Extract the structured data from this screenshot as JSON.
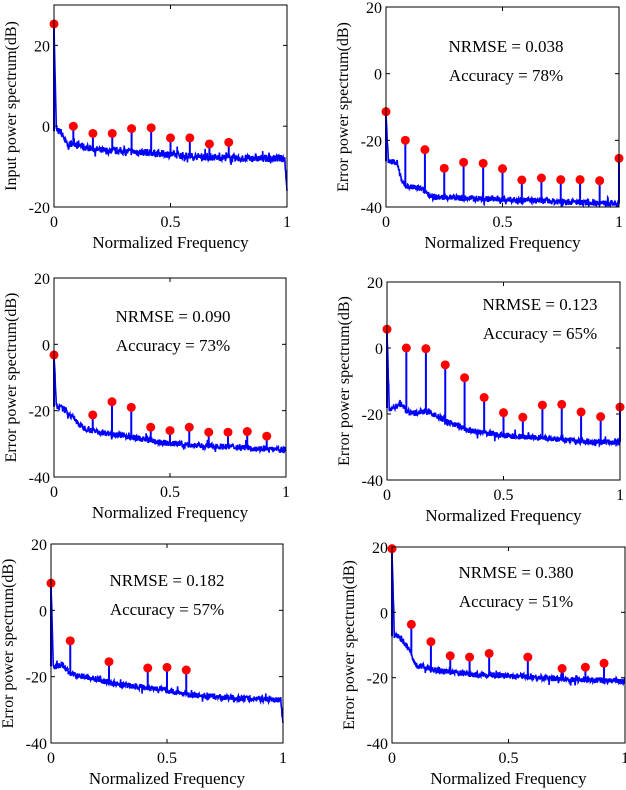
{
  "chart_data": [
    {
      "type": "stem+line",
      "xlabel": "Normalized Frequency",
      "ylabel": "Input power spectrum(dB)",
      "xlim": [
        0,
        1
      ],
      "ylim": [
        -20,
        30
      ],
      "xticks": [
        "0",
        "0.5",
        "1"
      ],
      "xtick_values": [
        0,
        0.5,
        1
      ],
      "yticks": [
        "-20",
        "0",
        "20"
      ],
      "ytick_values": [
        -20,
        0,
        20
      ],
      "annotations": [],
      "stems": {
        "x": [
          0,
          0.083,
          0.167,
          0.25,
          0.333,
          0.417,
          0.5,
          0.583,
          0.667,
          0.75
        ],
        "y": [
          25.3,
          0,
          -1.8,
          -1.8,
          -0.6,
          -0.4,
          -2.9,
          -2.9,
          -4.4,
          -4.0
        ]
      },
      "noise_floor": {
        "x": [
          0,
          0.01,
          0.03,
          0.06,
          0.08,
          0.12,
          0.2,
          0.4,
          0.6,
          0.8,
          0.99,
          1.0
        ],
        "y": [
          25,
          -1,
          -1.5,
          -5,
          -4,
          -5,
          -6,
          -6.5,
          -7.5,
          -8,
          -8,
          -16
        ]
      }
    },
    {
      "type": "stem+line",
      "xlabel": "Normalized Frequency",
      "ylabel": "Error power spectrum(dB)",
      "xlim": [
        0,
        1
      ],
      "ylim": [
        -40,
        20
      ],
      "xticks": [
        "0",
        "0.5",
        "1"
      ],
      "xtick_values": [
        0,
        0.5,
        1
      ],
      "yticks": [
        "-40",
        "-20",
        "0",
        "20"
      ],
      "ytick_values": [
        -40,
        -20,
        0,
        20
      ],
      "annotations": [
        "NRMSE = 0.038",
        "Accuracy = 78%"
      ],
      "stems": {
        "x": [
          0,
          0.083,
          0.167,
          0.25,
          0.333,
          0.417,
          0.5,
          0.583,
          0.667,
          0.75,
          0.833,
          0.917,
          1.0
        ],
        "y": [
          -11.4,
          -20,
          -22.8,
          -28.4,
          -26.6,
          -26.9,
          -28.5,
          -31.9,
          -31.3,
          -31.8,
          -31.8,
          -32.1,
          -25.4
        ]
      },
      "noise_floor": {
        "x": [
          0,
          0.01,
          0.05,
          0.07,
          0.1,
          0.15,
          0.2,
          0.4,
          0.6,
          0.8,
          1.0
        ],
        "y": [
          -12,
          -26,
          -27,
          -33,
          -34,
          -34.5,
          -37,
          -37.5,
          -38,
          -38.5,
          -39
        ]
      }
    },
    {
      "type": "stem+line",
      "xlabel": "Normalized Frequency",
      "ylabel": "Error power spectrum(dB)",
      "xlim": [
        0,
        1
      ],
      "ylim": [
        -40,
        20
      ],
      "xticks": [
        "0",
        "0.5",
        "1"
      ],
      "xtick_values": [
        0,
        0.5,
        1
      ],
      "yticks": [
        "-40",
        "-20",
        "0",
        "20"
      ],
      "ytick_values": [
        -40,
        -20,
        0,
        20
      ],
      "annotations": [
        "NRMSE = 0.090",
        "Accuracy = 73%"
      ],
      "stems": {
        "x": [
          0,
          0.167,
          0.25,
          0.333,
          0.417,
          0.5,
          0.583,
          0.667,
          0.75,
          0.833,
          0.917
        ],
        "y": [
          -3.2,
          -21.3,
          -17.3,
          -19,
          -25,
          -26,
          -25,
          -26.5,
          -26.5,
          -26.3,
          -27.7
        ]
      },
      "noise_floor": {
        "x": [
          0,
          0.01,
          0.04,
          0.08,
          0.12,
          0.2,
          0.3,
          0.45,
          0.6,
          0.8,
          1.0
        ],
        "y": [
          -3,
          -18.5,
          -19.5,
          -22,
          -25,
          -26.5,
          -27.5,
          -29.5,
          -30.5,
          -31,
          -32
        ]
      }
    },
    {
      "type": "stem+line",
      "xlabel": "Normalized Frequency",
      "ylabel": "Error power spectrum(dB)",
      "xlim": [
        0,
        1
      ],
      "ylim": [
        -40,
        20
      ],
      "xticks": [
        "0",
        "0.5",
        "1"
      ],
      "xtick_values": [
        0,
        0.5,
        1
      ],
      "yticks": [
        "-40",
        "-20",
        "0",
        "20"
      ],
      "ytick_values": [
        -40,
        -20,
        0,
        20
      ],
      "annotations": [
        "NRMSE = 0.123",
        "Accuracy = 65%"
      ],
      "stems": {
        "x": [
          0,
          0.083,
          0.167,
          0.25,
          0.333,
          0.417,
          0.5,
          0.583,
          0.667,
          0.75,
          0.833,
          0.917,
          1.0
        ],
        "y": [
          5.7,
          0,
          -0.2,
          -5.1,
          -9,
          -15,
          -19.6,
          -21,
          -17.3,
          -17.1,
          -19.4,
          -20.8,
          -17.9
        ]
      },
      "noise_floor": {
        "x": [
          0,
          0.01,
          0.06,
          0.1,
          0.17,
          0.25,
          0.35,
          0.5,
          0.7,
          0.9,
          1.0
        ],
        "y": [
          5,
          -18.5,
          -17,
          -20,
          -19,
          -22,
          -25,
          -26.5,
          -27.5,
          -28.5,
          -28.5
        ]
      }
    },
    {
      "type": "stem+line",
      "xlabel": "Normalized Frequency",
      "ylabel": "Error power spectrum(dB)",
      "xlim": [
        0,
        1
      ],
      "ylim": [
        -40,
        20
      ],
      "xticks": [
        "0",
        "0.5",
        "1"
      ],
      "xtick_values": [
        0,
        0.5,
        1
      ],
      "yticks": [
        "-40",
        "-20",
        "0",
        "20"
      ],
      "ytick_values": [
        -40,
        -20,
        0,
        20
      ],
      "annotations": [
        "NRMSE = 0.182",
        "Accuracy = 57%"
      ],
      "stems": {
        "x": [
          0,
          0.083,
          0.25,
          0.417,
          0.5,
          0.583
        ],
        "y": [
          8.2,
          -9.2,
          -15.5,
          -17.4,
          -17.2,
          -18
        ]
      },
      "noise_floor": {
        "x": [
          0,
          0.01,
          0.05,
          0.09,
          0.15,
          0.3,
          0.45,
          0.6,
          0.8,
          0.99,
          1.0
        ],
        "y": [
          8,
          -17,
          -16.5,
          -19.5,
          -20,
          -22.5,
          -23.5,
          -25.5,
          -26.5,
          -27,
          -34
        ]
      }
    },
    {
      "type": "stem+line",
      "xlabel": "Normalized Frequency",
      "ylabel": "Error power spectrum(dB)",
      "xlim": [
        0,
        1
      ],
      "ylim": [
        -40,
        20
      ],
      "xticks": [
        "0",
        "0.5",
        "1"
      ],
      "xtick_values": [
        0,
        0.5,
        1
      ],
      "yticks": [
        "-40",
        "-20",
        "0",
        "20"
      ],
      "ytick_values": [
        -40,
        -20,
        0,
        20
      ],
      "annotations": [
        "NRMSE = 0.380",
        "Accuracy = 51%"
      ],
      "stems": {
        "x": [
          0,
          0.083,
          0.167,
          0.25,
          0.333,
          0.417,
          0.583,
          0.73,
          0.83,
          0.91
        ],
        "y": [
          19.5,
          -3.7,
          -9,
          -13.3,
          -13.7,
          -12.6,
          -13.7,
          -17.2,
          -16.8,
          -15.6
        ]
      },
      "noise_floor": {
        "x": [
          0,
          0.01,
          0.04,
          0.07,
          0.1,
          0.2,
          0.35,
          0.55,
          0.75,
          1.0
        ],
        "y": [
          19,
          -7,
          -8,
          -11,
          -16,
          -18,
          -19,
          -19.5,
          -20.5,
          -21
        ]
      }
    }
  ],
  "colors": {
    "line": "#0000ff",
    "marker": "#ff0000",
    "axes": "#000000"
  }
}
